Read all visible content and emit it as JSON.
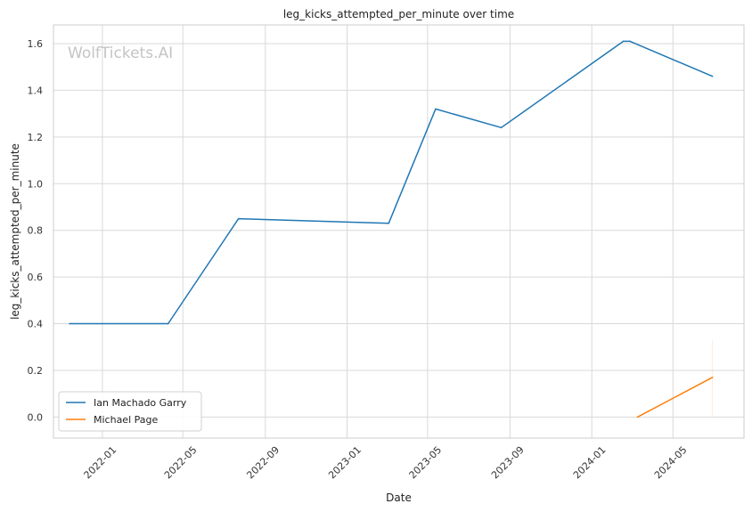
{
  "watermark": "WolfTickets.AI",
  "chart_data": {
    "type": "line",
    "title": "leg_kicks_attempted_per_minute over time",
    "xlabel": "Date",
    "ylabel": "leg_kicks_attempted_per_minute",
    "xlim": [
      "2021-10-20",
      "2024-08-15"
    ],
    "ylim": [
      -0.09,
      1.68
    ],
    "x_ticks": [
      "2022-01",
      "2022-05",
      "2022-09",
      "2023-01",
      "2023-05",
      "2023-09",
      "2024-01",
      "2024-05"
    ],
    "y_ticks": [
      0.0,
      0.2,
      0.4,
      0.6,
      0.8,
      1.0,
      1.2,
      1.4,
      1.6
    ],
    "y_tick_labels": [
      "0.0",
      "0.2",
      "0.4",
      "0.6",
      "0.8",
      "1.0",
      "1.2",
      "1.4",
      "1.6"
    ],
    "grid": true,
    "legend": "lower-left",
    "series": [
      {
        "name": "Ian Machado Garry",
        "color": "#1f77b4",
        "points": [
          {
            "x": "2021-11-13",
            "y": 0.4
          },
          {
            "x": "2022-04-09",
            "y": 0.4
          },
          {
            "x": "2022-07-23",
            "y": 0.85
          },
          {
            "x": "2023-03-04",
            "y": 0.83
          },
          {
            "x": "2023-05-13",
            "y": 1.32
          },
          {
            "x": "2023-08-19",
            "y": 1.24
          },
          {
            "x": "2024-02-17",
            "y": 1.61
          },
          {
            "x": "2024-02-27",
            "y": 1.61
          },
          {
            "x": "2024-06-29",
            "y": 1.46
          }
        ]
      },
      {
        "name": "Michael Page",
        "color": "#ff7f0e",
        "points": [
          {
            "x": "2024-03-09",
            "y": 0.0
          },
          {
            "x": "2024-06-29",
            "y": 0.17
          }
        ]
      }
    ]
  }
}
